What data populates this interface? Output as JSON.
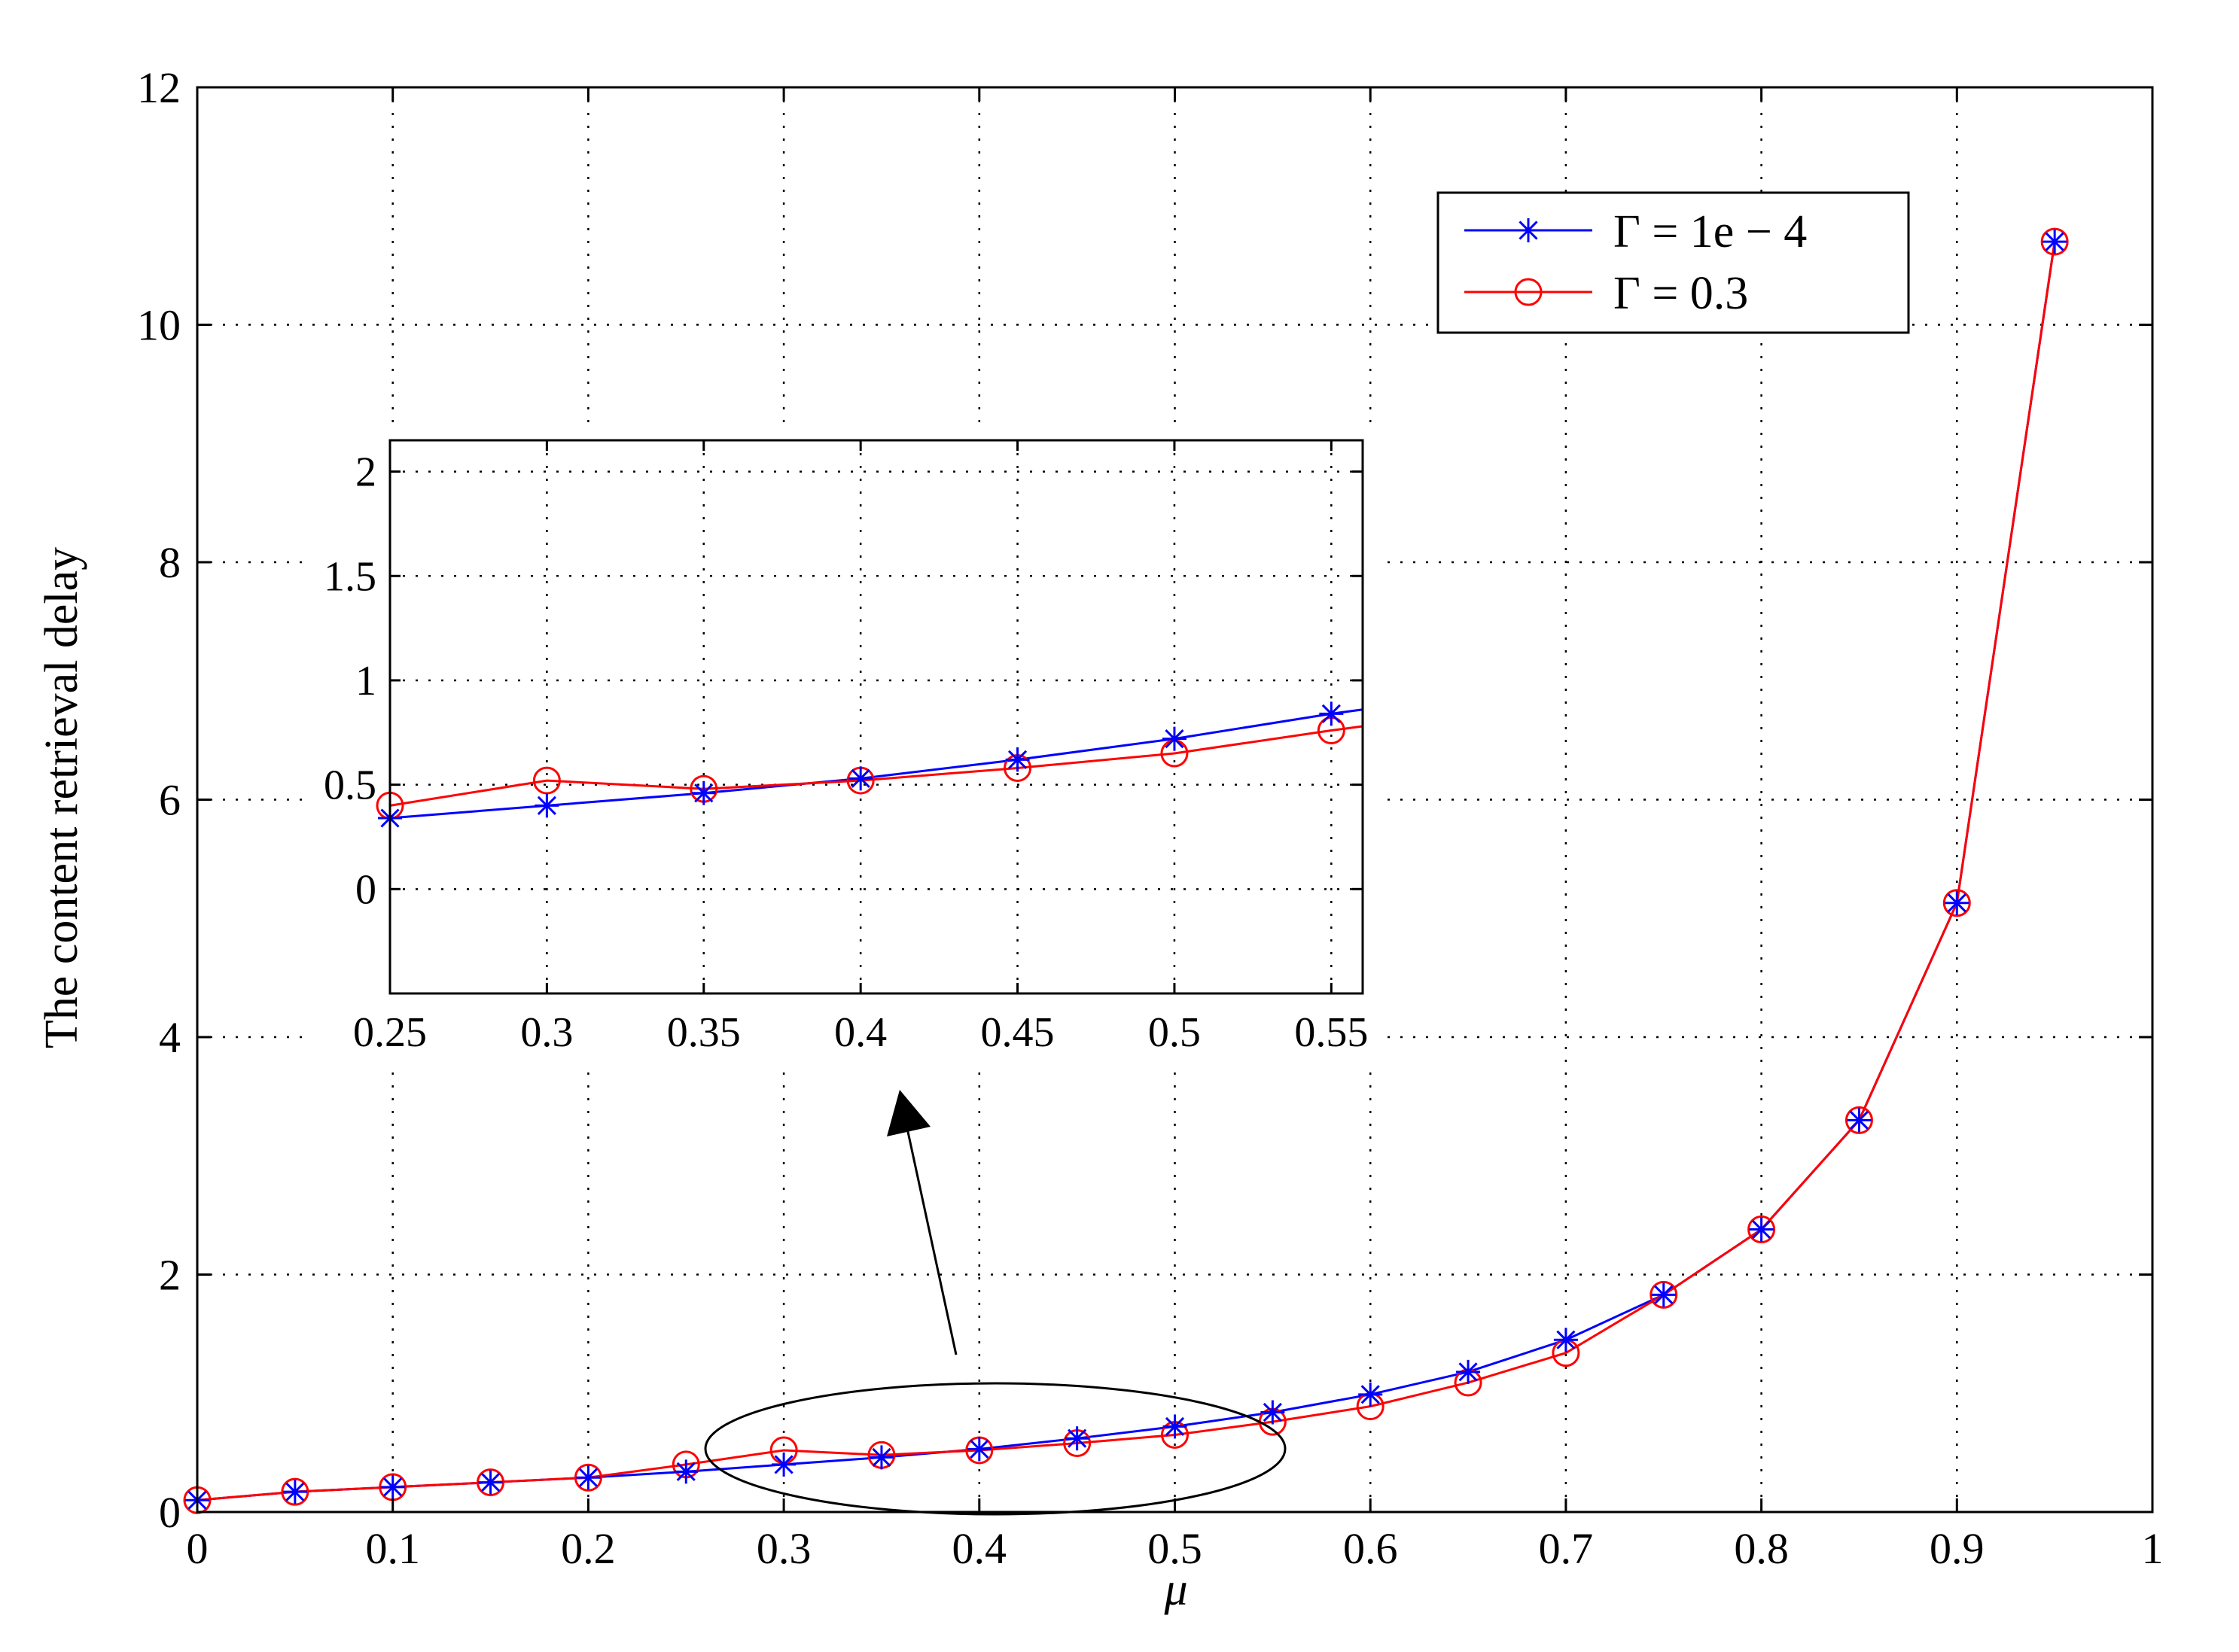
{
  "chart_data": {
    "type": "line",
    "title": "",
    "xlabel": "μ",
    "ylabel": "The content retrieval delay",
    "xlim": [
      0,
      1
    ],
    "ylim": [
      0,
      12
    ],
    "xticks": [
      "0",
      "0.1",
      "0.2",
      "0.3",
      "0.4",
      "0.5",
      "0.6",
      "0.7",
      "0.8",
      "0.9",
      "1"
    ],
    "yticks": [
      "0",
      "2",
      "4",
      "6",
      "8",
      "10",
      "12"
    ],
    "grid": true,
    "legend_position": "top-right",
    "series": [
      {
        "name": "Γ = 1e − 4",
        "color": "#0000ff",
        "marker": "asterisk",
        "x": [
          0,
          0.05,
          0.1,
          0.15,
          0.2,
          0.25,
          0.3,
          0.35,
          0.4,
          0.45,
          0.5,
          0.55,
          0.6,
          0.65,
          0.7,
          0.75,
          0.8,
          0.85,
          0.9,
          0.95
        ],
        "y": [
          0.1,
          0.17,
          0.21,
          0.25,
          0.29,
          0.34,
          0.4,
          0.46,
          0.53,
          0.62,
          0.72,
          0.84,
          0.99,
          1.18,
          1.45,
          1.83,
          2.38,
          3.3,
          5.13,
          10.7
        ]
      },
      {
        "name": "Γ = 0.3",
        "color": "#ff0000",
        "marker": "circle",
        "x": [
          0,
          0.05,
          0.1,
          0.15,
          0.2,
          0.25,
          0.3,
          0.35,
          0.4,
          0.45,
          0.5,
          0.55,
          0.6,
          0.65,
          0.7,
          0.75,
          0.8,
          0.85,
          0.9,
          0.95
        ],
        "y": [
          0.1,
          0.17,
          0.21,
          0.25,
          0.29,
          0.4,
          0.52,
          0.48,
          0.52,
          0.58,
          0.65,
          0.76,
          0.89,
          1.09,
          1.34,
          1.83,
          2.38,
          3.3,
          5.13,
          10.7
        ]
      }
    ],
    "inset": {
      "xlim": [
        0.25,
        0.56
      ],
      "ylim": [
        -0.5,
        2.15
      ],
      "xticks": [
        "0.25",
        "0.3",
        "0.35",
        "0.4",
        "0.45",
        "0.5",
        "0.55"
      ],
      "yticks": [
        "0",
        "0.5",
        "1",
        "1.5",
        "2"
      ],
      "grid": true,
      "series": [
        {
          "name": "Γ = 1e − 4",
          "color": "#0000ff",
          "marker": "asterisk",
          "x": [
            0.25,
            0.3,
            0.35,
            0.4,
            0.45,
            0.5,
            0.55
          ],
          "y": [
            0.34,
            0.4,
            0.46,
            0.53,
            0.62,
            0.72,
            0.84
          ],
          "end": [
            0.56,
            0.86
          ]
        },
        {
          "name": "Γ = 0.3",
          "color": "#ff0000",
          "marker": "circle",
          "x": [
            0.25,
            0.3,
            0.35,
            0.4,
            0.45,
            0.5,
            0.55
          ],
          "y": [
            0.4,
            0.52,
            0.48,
            0.52,
            0.58,
            0.65,
            0.76
          ],
          "end": [
            0.56,
            0.78
          ]
        }
      ]
    }
  }
}
